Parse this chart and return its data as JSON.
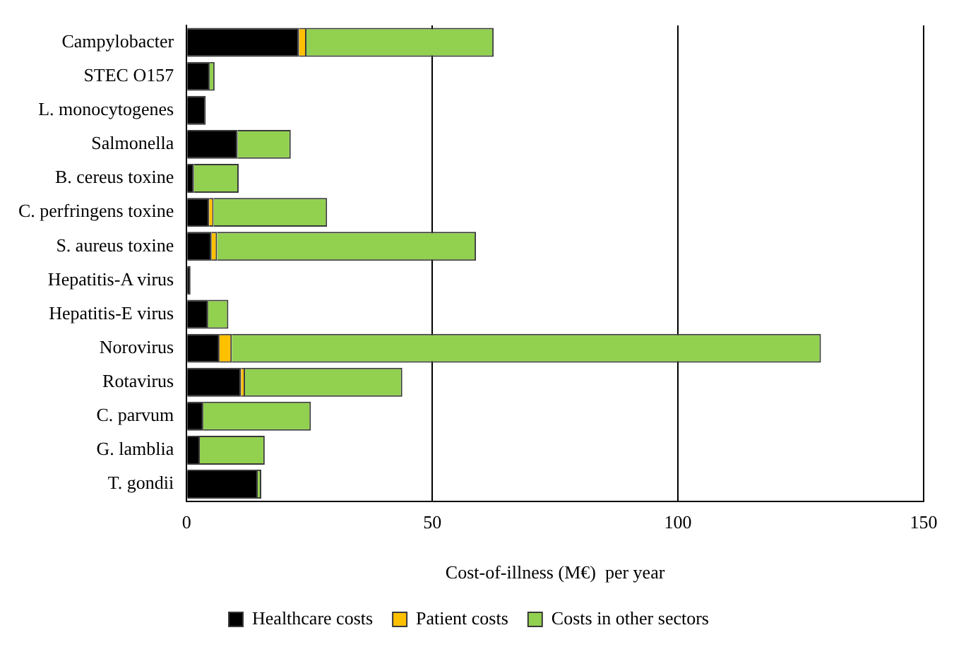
{
  "chart_data": {
    "type": "bar",
    "orientation": "horizontal",
    "stacked": true,
    "categories": [
      "Campylobacter",
      "STEC O157",
      "L. monocytogenes",
      "Salmonella",
      "B. cereus toxine",
      "C. perfringens toxine",
      "S. aureus toxine",
      "Hepatitis-A virus",
      "Hepatitis-E virus",
      "Norovirus",
      "Rotavirus",
      "C. parvum",
      "G. lamblia",
      "T. gondii"
    ],
    "series": [
      {
        "name": "Healthcare costs",
        "color": "#000000",
        "values": [
          22.9,
          4.7,
          3.9,
          10.4,
          1.5,
          4.6,
          5.1,
          0.8,
          4.4,
          6.7,
          11.1,
          3.4,
          2.7,
          14.5
        ]
      },
      {
        "name": "Patient costs",
        "color": "#ffc000",
        "values": [
          1.5,
          0,
          0,
          0,
          0,
          0.9,
          1.1,
          0,
          0,
          2.5,
          0.8,
          0,
          0,
          0
        ]
      },
      {
        "name": "Costs in other sectors",
        "color": "#92d050",
        "values": [
          38.1,
          1.0,
          0,
          10.8,
          9.1,
          23.1,
          52.7,
          0,
          4.1,
          119.9,
          32.0,
          21.9,
          13.2,
          0.7
        ]
      }
    ],
    "xlabel": "Cost-of-illness (M€)  per year",
    "xlim": [
      0,
      150
    ],
    "xticks": [
      0,
      50,
      100,
      150
    ],
    "grid": "x",
    "legend": "bottom"
  }
}
